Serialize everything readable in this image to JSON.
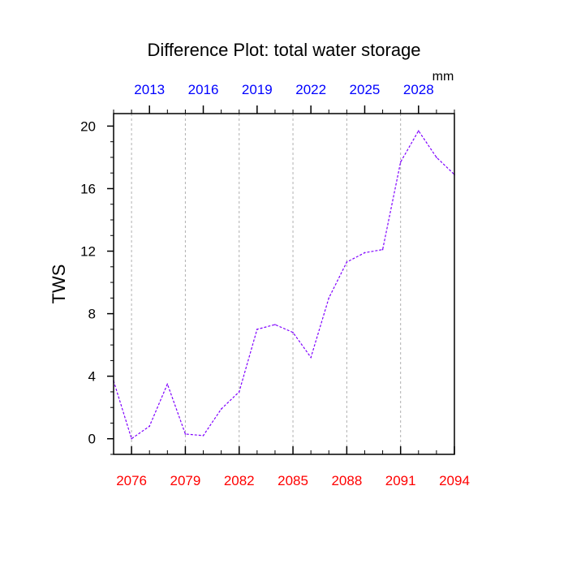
{
  "chart_data": {
    "type": "line",
    "title": "Difference Plot: total water storage",
    "units": "mm",
    "ylabel": "TWS",
    "xlabel": "",
    "ylim": [
      -1,
      20.8
    ],
    "yticks": [
      0,
      4,
      8,
      12,
      16,
      20
    ],
    "bottom_axis": {
      "range": [
        2075,
        2094
      ],
      "tick_labels": [
        "2076",
        "2079",
        "2082",
        "2085",
        "2088",
        "2091",
        "2094"
      ],
      "label_color": "#ff0000"
    },
    "top_axis": {
      "range": [
        2011,
        2030
      ],
      "tick_labels": [
        "2013",
        "2016",
        "2019",
        "2022",
        "2025",
        "2028"
      ],
      "label_color": "#0000ff"
    },
    "grid": "vertical dashed at labeled bottom ticks",
    "series": [
      {
        "x": [
          2075,
          2076,
          2077,
          2078,
          2079,
          2080,
          2081,
          2082,
          2083,
          2084,
          2085,
          2086,
          2087,
          2088,
          2089,
          2090,
          2091,
          2092,
          2093,
          2094
        ],
        "values": [
          3.7,
          0.0,
          0.8,
          3.5,
          0.3,
          0.2,
          1.9,
          3.0,
          7.0,
          7.3,
          6.8,
          5.2,
          9.0,
          11.3,
          11.9,
          12.1,
          17.7,
          19.7,
          18.0,
          16.9
        ],
        "color": "#7f00ff",
        "style": "dashed"
      }
    ]
  }
}
